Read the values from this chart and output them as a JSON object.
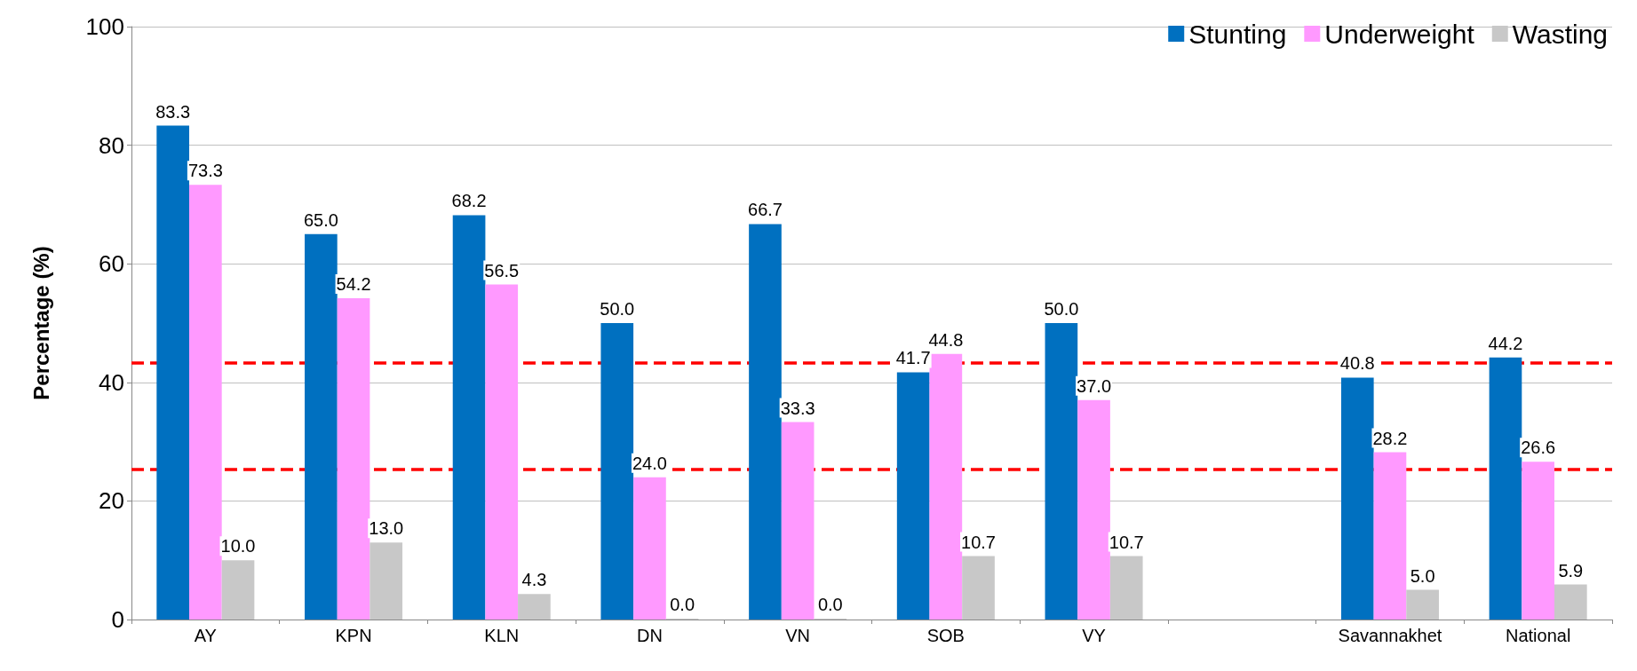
{
  "chart_data": {
    "type": "bar",
    "ylabel": "Percentage (%)",
    "categories": [
      "AY",
      "KPN",
      "KLN",
      "DN",
      "VN",
      "SOB",
      "VY",
      null,
      "Savannakhet",
      "National"
    ],
    "series": [
      {
        "name": "Stunting",
        "color": "#0070c0",
        "values": [
          83.3,
          65.0,
          68.2,
          50.0,
          66.7,
          41.7,
          50.0,
          null,
          40.8,
          44.2
        ],
        "value_labels": [
          "83.3",
          "65.0",
          "68.2",
          "50.0",
          "66.7",
          "41.7",
          "50.0",
          null,
          "40.8",
          "44.2"
        ]
      },
      {
        "name": "Underweight",
        "color": "#ff99ff",
        "values": [
          73.3,
          54.2,
          56.5,
          24.0,
          33.3,
          44.8,
          37.0,
          null,
          28.2,
          26.6
        ],
        "value_labels": [
          "73.3",
          "54.2",
          "56.5",
          "24.0",
          "33.3",
          "44.8",
          "37.0",
          null,
          "28.2",
          "26.6"
        ]
      },
      {
        "name": "Wasting",
        "color": "#c8c8c8",
        "values": [
          10.0,
          13.0,
          4.3,
          0.0,
          0.0,
          10.7,
          10.7,
          null,
          5.0,
          5.9
        ],
        "value_labels": [
          "10.0",
          "13.0",
          "4.3",
          "0.0",
          "0.0",
          "10.7",
          "10.7",
          null,
          "5.0",
          "5.9"
        ]
      }
    ],
    "ylim": [
      0,
      100
    ],
    "yticks": [
      0,
      20,
      40,
      60,
      80,
      100
    ],
    "grid": "y",
    "legend": "top right",
    "ref_lines": [
      {
        "axis": "y",
        "value": 43.3,
        "color": "#ff0000",
        "line_style": "dashed"
      },
      {
        "axis": "y",
        "value": 25.4,
        "color": "#ff0000",
        "line_style": "dashed"
      }
    ]
  }
}
